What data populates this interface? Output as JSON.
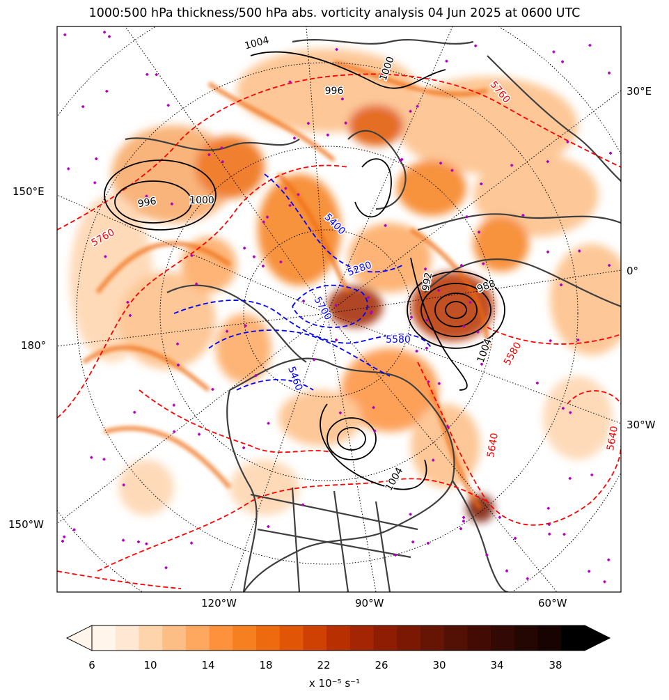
{
  "title": "1000:500 hPa thickness/500 hPa abs. vorticity analysis 04 Jun 2025 at 0600 UTC",
  "longitude_labels": {
    "right": [
      "30°E",
      "0°",
      "30°W"
    ],
    "left": [
      "150°E",
      "180°",
      "150°W"
    ],
    "bottom": [
      "120°W",
      "90°W",
      "60°W"
    ]
  },
  "thickness_labels": [
    "5760",
    "5580",
    "5640",
    "5640",
    "5760",
    "5460",
    "5400",
    "5280",
    "5580",
    "5700"
  ],
  "pressure_labels": [
    "1004",
    "1000",
    "996",
    "992",
    "988",
    "1004",
    "1004",
    "996",
    "1000"
  ],
  "colorbar": {
    "ticks": [
      "6",
      "10",
      "14",
      "18",
      "22",
      "26",
      "30",
      "34",
      "38"
    ],
    "unit_label": "x 10⁻⁵ s⁻¹",
    "colors": [
      "#fff5eb",
      "#ffe8d3",
      "#fed4ad",
      "#fdbe85",
      "#fda75f",
      "#fd913c",
      "#f67f1f",
      "#ee6a0e",
      "#e15506",
      "#cf4102",
      "#b83002",
      "#a32503",
      "#8f1d04",
      "#7a1804",
      "#661404",
      "#531004",
      "#420c04",
      "#320904",
      "#240603",
      "#160302",
      "#000000"
    ]
  },
  "colors": {
    "thickness_cold": "#0000ff",
    "thickness_warm": "#ff0000",
    "mslp": "#000000",
    "coast": "#3f3f3f",
    "lows_marker": "#b000c0"
  }
}
